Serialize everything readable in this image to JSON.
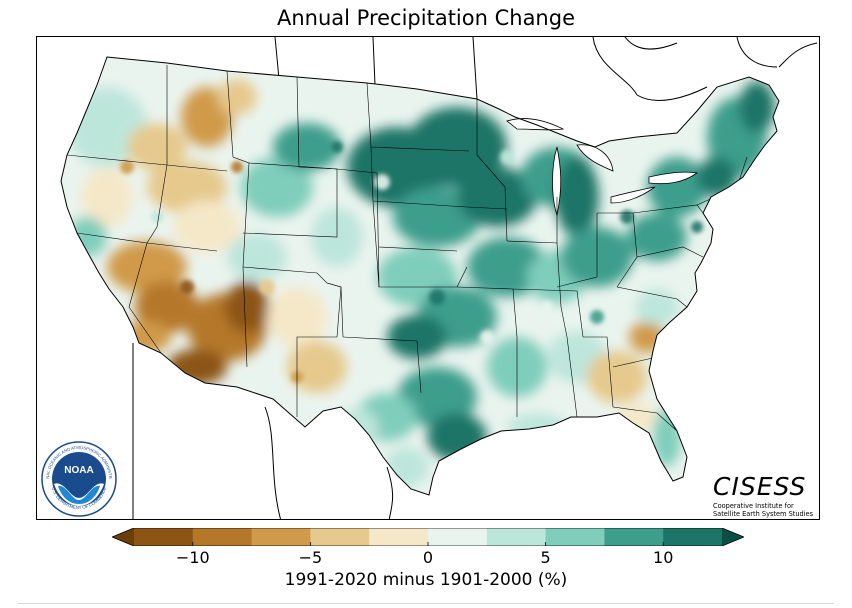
{
  "title": "Annual Precipitation Change",
  "colorbar": {
    "label": "1991-2020 minus 1901-2000 (%)",
    "ticks": [
      {
        "value": -10,
        "text": "−10"
      },
      {
        "value": -5,
        "text": "−5"
      },
      {
        "value": 0,
        "text": "0"
      },
      {
        "value": 5,
        "text": "5"
      },
      {
        "value": 10,
        "text": "10"
      }
    ],
    "range": [
      -12.5,
      12.5
    ],
    "step": 2.5,
    "colors": [
      "#8c5513",
      "#b5782a",
      "#d09a4a",
      "#e6c98c",
      "#f5e8c8",
      "#eaf4ef",
      "#bde6db",
      "#7fcdbb",
      "#3d9e8c",
      "#1c7566"
    ],
    "extend_low_color": "#6b3e0a",
    "extend_high_color": "#0b4e45"
  },
  "logos": {
    "noaa": {
      "name": "noaa-logo",
      "center_text": "NOAA",
      "ring_text_top": "NATIONAL OCEANIC AND ATMOSPHERIC ADMINISTRATION",
      "ring_text_bottom": "U.S. DEPARTMENT OF COMMERCE"
    },
    "cisess": {
      "word": "CISESS",
      "subtitle_line1": "Cooperative Institute for",
      "subtitle_line2": "Satellite Earth System Studies"
    }
  },
  "map": {
    "region": "Contiguous United States",
    "overall_pattern": "wetter (teal) across Great Plains, Midwest and Northeast; drier (brown) in the Southwest"
  }
}
